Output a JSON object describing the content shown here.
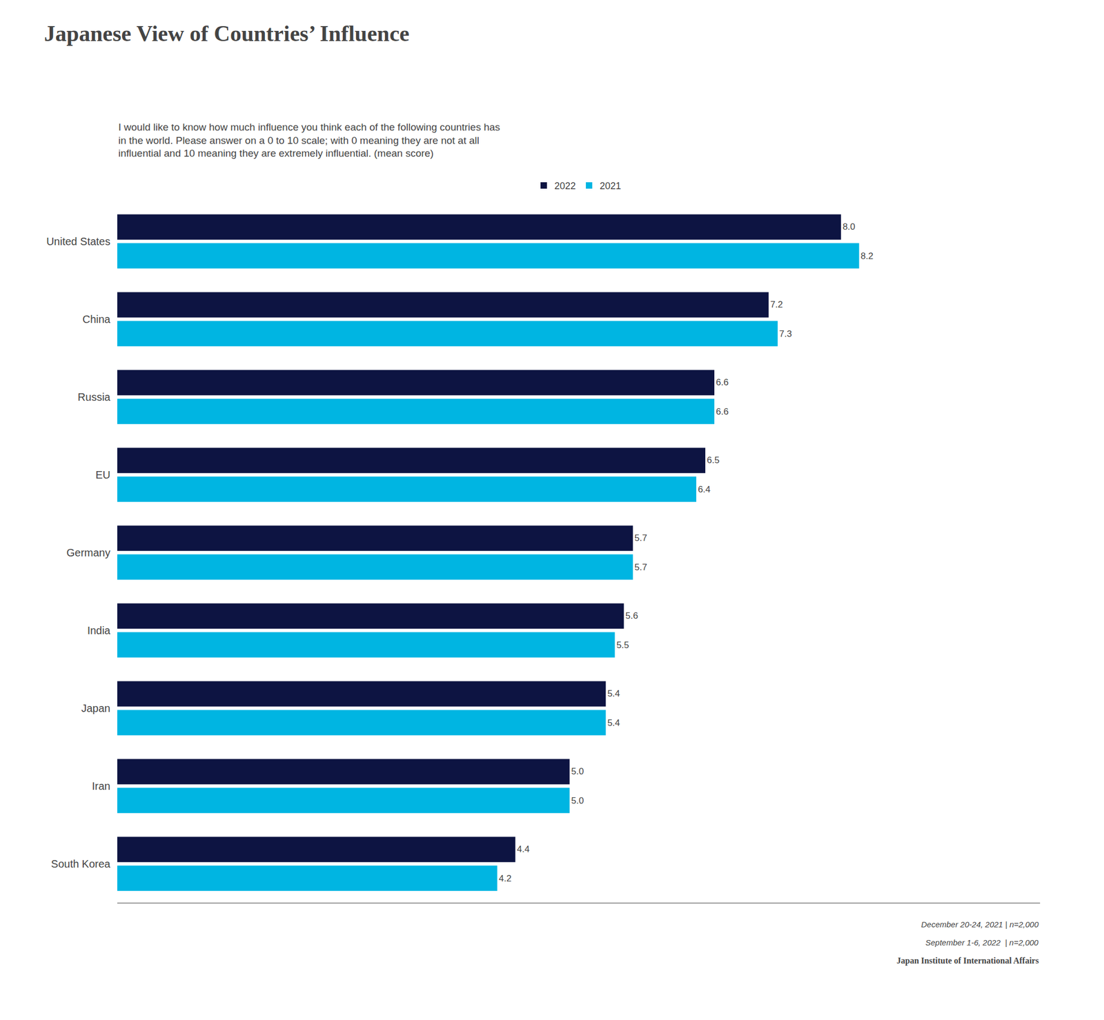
{
  "chart_data": {
    "type": "bar",
    "orientation": "horizontal",
    "title": "Japanese View of Countries’ Influence",
    "subtitle": "I would like to know how much influence you think each of the following countries has\nin the world. Please answer on a 0 to 10 scale; with 0 meaning they are not at all\ninfluential and 10 meaning they are extremely influential. (mean score)",
    "categories": [
      "United States",
      "China",
      "Russia",
      "EU",
      "Germany",
      "India",
      "Japan",
      "Iran",
      "South Korea"
    ],
    "series": [
      {
        "name": "2022",
        "color": "#0d1442",
        "values": [
          8.0,
          7.2,
          6.6,
          6.5,
          5.7,
          5.6,
          5.4,
          5.0,
          4.4
        ],
        "value_labels": [
          "8.0",
          "7.2",
          "6.6",
          "6.5",
          "5.7",
          "5.6",
          "5.4",
          "5.0",
          "4.4"
        ]
      },
      {
        "name": "2021",
        "color": "#00b5e2",
        "values": [
          8.2,
          7.3,
          6.6,
          6.4,
          5.7,
          5.5,
          5.4,
          5.0,
          4.2
        ],
        "value_labels": [
          "8.2",
          "7.3",
          "6.6",
          "6.4",
          "5.7",
          "5.5",
          "5.4",
          "5.0",
          "4.2"
        ]
      }
    ],
    "xlim": [
      0,
      10.2
    ],
    "data_labels": true,
    "tick_labels": "y",
    "grid": false,
    "legend": "upper center",
    "annotations": [
      "December 20-24, 2021 | n=2,000",
      "September 1-6, 2022  | n=2,000",
      "Japan Institute of International Affairs"
    ]
  }
}
